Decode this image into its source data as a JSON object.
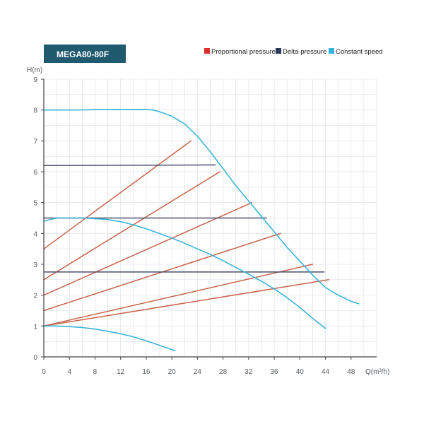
{
  "chart_data": {
    "type": "line",
    "title": "MEGA80-80F",
    "xlabel": "Q(m³/h)",
    "ylabel": "H(m)",
    "xlim": [
      0,
      52
    ],
    "ylim": [
      0,
      9
    ],
    "x_ticks": [
      0,
      4,
      8,
      12,
      16,
      20,
      24,
      28,
      32,
      36,
      40,
      44,
      48
    ],
    "y_ticks": [
      0,
      1,
      2,
      3,
      4,
      5,
      6,
      7,
      8,
      9
    ],
    "grid": true,
    "legend_position": "top-right",
    "legend": [
      {
        "label": "Proportional pressure",
        "color": "#d9302b"
      },
      {
        "label": "Delta-pressure",
        "color": "#2b3a5c"
      },
      {
        "label": "Constant speed",
        "color": "#35b6e0"
      }
    ],
    "colors": {
      "title_bg": "#1f5a6e",
      "proportional": "#c8624a",
      "delta": "#4a4f6e",
      "constant": "#3ab4dc",
      "grid": "#d9dde2",
      "axis": "#444444"
    },
    "series": [
      {
        "name": "Constant speed",
        "kind": "constant",
        "x": [
          0,
          5,
          10,
          15,
          16,
          17,
          18,
          20,
          22,
          24,
          26,
          28,
          30,
          32,
          34,
          36,
          38,
          40,
          42,
          44,
          46,
          48,
          49.2
        ],
        "y": [
          8.0,
          8.0,
          8.02,
          8.02,
          8.02,
          8.0,
          7.95,
          7.8,
          7.55,
          7.15,
          6.65,
          6.1,
          5.55,
          5.05,
          4.55,
          4.05,
          3.55,
          3.1,
          2.65,
          2.25,
          2.0,
          1.8,
          1.72
        ]
      },
      {
        "name": "Constant speed",
        "kind": "constant",
        "x": [
          0,
          2,
          4,
          6,
          8,
          10,
          12,
          14,
          16,
          18,
          20,
          22,
          24,
          26,
          28,
          30,
          32,
          34,
          36,
          38,
          40,
          42,
          44
        ],
        "y": [
          4.4,
          4.5,
          4.5,
          4.5,
          4.48,
          4.45,
          4.38,
          4.28,
          4.15,
          4.0,
          3.85,
          3.68,
          3.5,
          3.32,
          3.12,
          2.9,
          2.68,
          2.45,
          2.2,
          1.92,
          1.6,
          1.25,
          0.92
        ]
      },
      {
        "name": "Constant speed",
        "kind": "constant",
        "x": [
          0,
          2,
          4,
          6,
          8,
          10,
          12,
          14,
          16,
          18,
          20.5
        ],
        "y": [
          1.0,
          1.0,
          0.98,
          0.95,
          0.9,
          0.83,
          0.75,
          0.65,
          0.52,
          0.38,
          0.2
        ]
      },
      {
        "name": "Delta-pressure",
        "kind": "delta",
        "x": [
          0,
          26.8
        ],
        "y": [
          6.2,
          6.22
        ]
      },
      {
        "name": "Delta-pressure",
        "kind": "delta",
        "x": [
          0,
          34.8
        ],
        "y": [
          4.5,
          4.5
        ]
      },
      {
        "name": "Delta-pressure",
        "kind": "delta",
        "x": [
          0,
          43.8
        ],
        "y": [
          2.75,
          2.75
        ]
      },
      {
        "name": "Proportional pressure",
        "kind": "proportional",
        "x": [
          0,
          23
        ],
        "y": [
          3.5,
          7.0
        ]
      },
      {
        "name": "Proportional pressure",
        "kind": "proportional",
        "x": [
          0,
          27.5
        ],
        "y": [
          2.5,
          6.0
        ]
      },
      {
        "name": "Proportional pressure",
        "kind": "proportional",
        "x": [
          0,
          32.5
        ],
        "y": [
          2.0,
          5.0
        ]
      },
      {
        "name": "Proportional pressure",
        "kind": "proportional",
        "x": [
          0,
          37
        ],
        "y": [
          1.5,
          4.0
        ]
      },
      {
        "name": "Proportional pressure",
        "kind": "proportional",
        "x": [
          0,
          42
        ],
        "y": [
          1.0,
          3.0
        ]
      },
      {
        "name": "Proportional pressure",
        "kind": "proportional",
        "x": [
          0,
          44.5
        ],
        "y": [
          1.0,
          2.5
        ]
      }
    ]
  }
}
